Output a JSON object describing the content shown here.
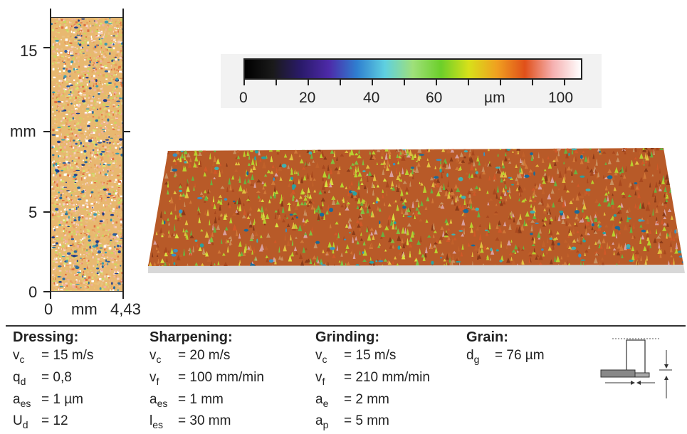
{
  "colors": {
    "accent": "#d8501a",
    "ink": "#222222"
  },
  "left_map": {
    "y_ticks": [
      "15",
      "mm",
      "5",
      "0"
    ],
    "x_ticks": [
      "0",
      "mm",
      "4,43"
    ]
  },
  "colorbar": {
    "tick_labels": [
      "0",
      "20",
      "40",
      "60",
      "µm",
      "100"
    ],
    "stops": [
      "#000000",
      "#1a1a1a",
      "#2a1a6a",
      "#4d2aa8",
      "#2f7fd0",
      "#5fd0e0",
      "#9fe07a",
      "#6ccf2a",
      "#d8e01a",
      "#f0a020",
      "#e0501a",
      "#f5b0b0",
      "#ffffff"
    ]
  },
  "params": [
    {
      "title": "Dressing:",
      "rows": [
        {
          "sym": "v",
          "sub": "c",
          "val": "= 15 m/s"
        },
        {
          "sym": "q",
          "sub": "d",
          "val": "= 0,8"
        },
        {
          "sym": "a",
          "sub": "es",
          "val": "= 1 µm"
        },
        {
          "sym": "U",
          "sub": "d",
          "val": "= 12"
        }
      ]
    },
    {
      "title": "Sharpening:",
      "rows": [
        {
          "sym": "v",
          "sub": "c",
          "val": "= 20 m/s"
        },
        {
          "sym": "v",
          "sub": "f",
          "val": "= 100 mm/min"
        },
        {
          "sym": "a",
          "sub": "es",
          "val": "= 1 mm"
        },
        {
          "sym": "l",
          "sub": "es",
          "val": "= 30 mm"
        }
      ]
    },
    {
      "title": "Grinding:",
      "rows": [
        {
          "sym": "v",
          "sub": "c",
          "val": "= 15 m/s"
        },
        {
          "sym": "v",
          "sub": "f",
          "val": "= 210 mm/min"
        },
        {
          "sym": "a",
          "sub": "e",
          "val": "= 2 mm"
        },
        {
          "sym": "a",
          "sub": "p",
          "val": "= 5 mm"
        }
      ]
    },
    {
      "title": "Grain:",
      "rows": [
        {
          "sym": "d",
          "sub": "g",
          "val": "= 76 µm"
        }
      ]
    }
  ]
}
